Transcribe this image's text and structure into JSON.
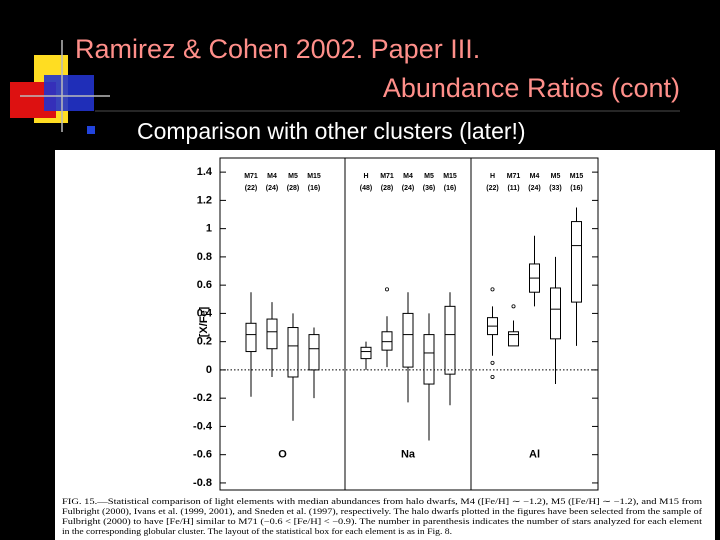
{
  "slide": {
    "title_line1": "Ramirez & Cohen 2002. Paper III.",
    "title_line2": "Abundance Ratios (cont)",
    "bullet": "Comparison with other clusters (later!)"
  },
  "chart_data": {
    "type": "box",
    "y_label": "[X/Fe]",
    "ylim": [
      -0.85,
      1.5
    ],
    "yticks": [
      1.4,
      1.2,
      1,
      0.8,
      0.6,
      0.4,
      0.2,
      0,
      -0.2,
      -0.4,
      -0.6,
      -0.8
    ],
    "panels": [
      {
        "label": "O",
        "groups": [
          {
            "name": "M71",
            "count": "(22)",
            "low": -0.19,
            "q1": 0.13,
            "median": 0.25,
            "q3": 0.33,
            "high": 0.55,
            "outliers": []
          },
          {
            "name": "M4",
            "count": "(24)",
            "low": -0.05,
            "q1": 0.15,
            "median": 0.27,
            "q3": 0.36,
            "high": 0.48,
            "outliers": []
          },
          {
            "name": "M5",
            "count": "(28)",
            "low": -0.36,
            "q1": -0.05,
            "median": 0.17,
            "q3": 0.3,
            "high": 0.4,
            "outliers": []
          },
          {
            "name": "M15",
            "count": "(16)",
            "low": -0.2,
            "q1": 0,
            "median": 0.15,
            "q3": 0.25,
            "high": 0.3,
            "outliers": []
          }
        ]
      },
      {
        "label": "Na",
        "groups": [
          {
            "name": "H",
            "count": "(48)",
            "low": 0,
            "q1": 0.08,
            "median": 0.13,
            "q3": 0.16,
            "high": 0.2,
            "outliers": []
          },
          {
            "name": "M71",
            "count": "(28)",
            "low": 0.02,
            "q1": 0.14,
            "median": 0.2,
            "q3": 0.27,
            "high": 0.38,
            "outliers": [
              0.57
            ]
          },
          {
            "name": "M4",
            "count": "(24)",
            "low": -0.23,
            "q1": 0.02,
            "median": 0.25,
            "q3": 0.4,
            "high": 0.55,
            "outliers": []
          },
          {
            "name": "M5",
            "count": "(36)",
            "low": -0.5,
            "q1": -0.1,
            "median": 0.12,
            "q3": 0.25,
            "high": 0.4,
            "outliers": []
          },
          {
            "name": "M15",
            "count": "(16)",
            "low": -0.25,
            "q1": -0.03,
            "median": 0.25,
            "q3": 0.45,
            "high": 0.55,
            "outliers": []
          }
        ]
      },
      {
        "label": "Al",
        "groups": [
          {
            "name": "H",
            "count": "(22)",
            "low": 0.1,
            "q1": 0.25,
            "median": 0.31,
            "q3": 0.37,
            "high": 0.45,
            "outliers": [
              0.57,
              0.05,
              -0.05
            ]
          },
          {
            "name": "M71",
            "count": "(11)",
            "low": 0.17,
            "q1": 0.17,
            "median": 0.25,
            "q3": 0.27,
            "high": 0.35,
            "outliers": [
              0.45
            ]
          },
          {
            "name": "M4",
            "count": "(24)",
            "low": 0.45,
            "q1": 0.55,
            "median": 0.65,
            "q3": 0.75,
            "high": 0.95,
            "outliers": []
          },
          {
            "name": "M5",
            "count": "(33)",
            "low": -0.1,
            "q1": 0.22,
            "median": 0.43,
            "q3": 0.58,
            "high": 0.8,
            "outliers": []
          },
          {
            "name": "M15",
            "count": "(16)",
            "low": 0.17,
            "q1": 0.48,
            "median": 0.88,
            "q3": 1.05,
            "high": 1.15,
            "outliers": []
          }
        ]
      }
    ]
  },
  "caption": [
    "FIG. 15.—Statistical comparison of light elements with median abundances from halo dwarfs, M4 ([Fe/H] ∼ −1.2), M5 ([Fe/H] ∼ −1.2), and M15 from",
    "Fulbright (2000), Ivans et al. (1999, 2001), and Sneden et al. (1997), respectively. The halo dwarfs plotted in the figures have been selected from the sample of",
    "Fulbright (2000) to have [Fe/H] similar to M71 (−0.6 < [Fe/H] < −0.9). The number in parenthesis indicates the number of stars analyzed for each element",
    "in the corresponding globular cluster. The layout of the statistical box for each element is as in Fig. 8."
  ]
}
